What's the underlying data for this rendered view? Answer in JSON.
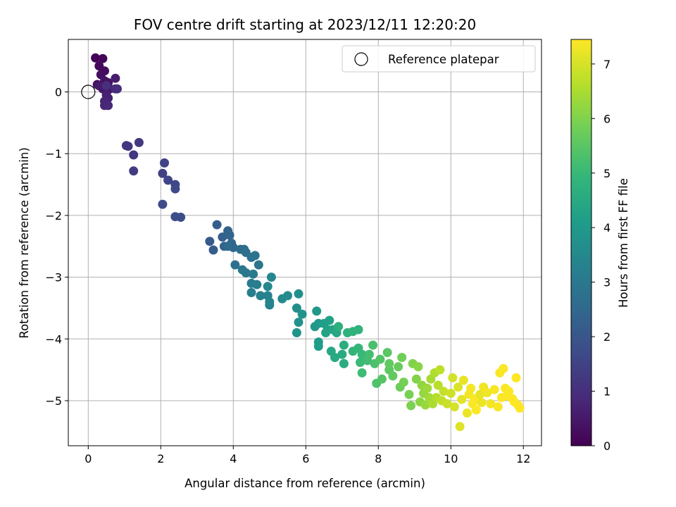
{
  "chart_data": {
    "type": "scatter",
    "title": "FOV centre drift starting at 2023/12/11 12:20:20",
    "xlabel": "Angular distance from reference (arcmin)",
    "ylabel": "Rotation from reference (arcmin)",
    "xlim": [
      -0.55,
      12.5
    ],
    "ylim": [
      -5.73,
      0.85
    ],
    "xticks": [
      0,
      2,
      4,
      6,
      8,
      10,
      12
    ],
    "yticks": [
      0,
      -1,
      -2,
      -3,
      -4,
      -5
    ],
    "grid": true,
    "legend": {
      "placement": "top-right",
      "entries": [
        "Reference platepar"
      ]
    },
    "reference_point": {
      "x": 0,
      "y": 0,
      "label": "Reference platepar"
    },
    "colorbar": {
      "label": "Hours from first FF file",
      "range": [
        0,
        7.45
      ],
      "ticks": [
        0,
        1,
        2,
        3,
        4,
        5,
        6,
        7
      ],
      "colormap": "viridis"
    },
    "points": [
      [
        0.2,
        0.55,
        0.05
      ],
      [
        0.4,
        0.54,
        0.1
      ],
      [
        0.3,
        0.42,
        0.15
      ],
      [
        0.45,
        0.34,
        0.2
      ],
      [
        0.35,
        0.28,
        0.25
      ],
      [
        0.25,
        0.12,
        0.3
      ],
      [
        0.45,
        0.18,
        0.35
      ],
      [
        0.55,
        0.15,
        0.4
      ],
      [
        0.4,
        0.05,
        0.45
      ],
      [
        0.6,
        0.05,
        0.5
      ],
      [
        0.3,
        0.1,
        0.55
      ],
      [
        0.75,
        0.22,
        0.6
      ],
      [
        0.5,
        -0.05,
        0.65
      ],
      [
        0.55,
        -0.1,
        0.7
      ],
      [
        0.45,
        -0.15,
        0.75
      ],
      [
        0.45,
        -0.22,
        0.8
      ],
      [
        0.55,
        -0.22,
        0.85
      ],
      [
        0.75,
        0.05,
        0.9
      ],
      [
        0.8,
        0.05,
        0.95
      ],
      [
        0.5,
        0.1,
        1.0
      ],
      [
        1.05,
        -0.87,
        1.1
      ],
      [
        1.1,
        -0.88,
        1.15
      ],
      [
        1.25,
        -1.02,
        1.2
      ],
      [
        1.4,
        -0.82,
        1.25
      ],
      [
        1.25,
        -1.28,
        1.3
      ],
      [
        2.05,
        -1.32,
        1.45
      ],
      [
        2.1,
        -1.15,
        1.5
      ],
      [
        2.2,
        -1.43,
        1.55
      ],
      [
        2.4,
        -1.5,
        1.6
      ],
      [
        2.4,
        -1.57,
        1.65
      ],
      [
        2.05,
        -1.82,
        1.7
      ],
      [
        2.4,
        -2.02,
        1.75
      ],
      [
        2.55,
        -2.03,
        1.8
      ],
      [
        3.35,
        -2.42,
        2.1
      ],
      [
        3.45,
        -2.56,
        2.15
      ],
      [
        3.55,
        -2.15,
        2.2
      ],
      [
        3.7,
        -2.35,
        2.25
      ],
      [
        3.75,
        -2.5,
        2.3
      ],
      [
        3.85,
        -2.25,
        2.35
      ],
      [
        3.9,
        -2.32,
        2.4
      ],
      [
        3.95,
        -2.45,
        2.45
      ],
      [
        4.0,
        -2.52,
        2.5
      ],
      [
        3.85,
        -2.5,
        2.55
      ],
      [
        4.2,
        -2.55,
        2.6
      ],
      [
        4.3,
        -2.55,
        2.65
      ],
      [
        4.35,
        -2.6,
        2.7
      ],
      [
        4.05,
        -2.8,
        2.75
      ],
      [
        4.5,
        -2.68,
        2.8
      ],
      [
        4.6,
        -2.65,
        2.85
      ],
      [
        4.7,
        -2.8,
        2.9
      ],
      [
        4.25,
        -2.88,
        2.95
      ],
      [
        4.35,
        -2.93,
        3.0
      ],
      [
        4.55,
        -2.95,
        3.05
      ],
      [
        4.5,
        -3.1,
        3.1
      ],
      [
        4.65,
        -3.12,
        3.15
      ],
      [
        4.5,
        -3.25,
        3.2
      ],
      [
        4.75,
        -3.3,
        3.25
      ],
      [
        4.95,
        -3.3,
        3.3
      ],
      [
        5.0,
        -3.45,
        3.35
      ],
      [
        5.0,
        -3.4,
        3.4
      ],
      [
        5.05,
        -3.0,
        3.45
      ],
      [
        4.95,
        -3.15,
        3.5
      ],
      [
        5.35,
        -3.35,
        3.55
      ],
      [
        5.5,
        -3.3,
        3.6
      ],
      [
        5.75,
        -3.5,
        3.65
      ],
      [
        5.8,
        -3.27,
        3.7
      ],
      [
        5.8,
        -3.73,
        3.75
      ],
      [
        5.9,
        -3.6,
        3.8
      ],
      [
        5.75,
        -3.9,
        3.85
      ],
      [
        6.25,
        -3.8,
        3.9
      ],
      [
        6.3,
        -3.55,
        3.95
      ],
      [
        6.35,
        -3.75,
        4.0
      ],
      [
        6.35,
        -4.05,
        4.05
      ],
      [
        6.35,
        -4.12,
        4.1
      ],
      [
        6.5,
        -3.75,
        4.15
      ],
      [
        6.6,
        -3.85,
        4.2
      ],
      [
        6.65,
        -3.7,
        4.25
      ],
      [
        6.55,
        -3.9,
        4.3
      ],
      [
        6.75,
        -3.85,
        4.35
      ],
      [
        6.85,
        -3.9,
        4.4
      ],
      [
        6.7,
        -4.2,
        4.45
      ],
      [
        6.8,
        -4.3,
        4.5
      ],
      [
        7.0,
        -4.25,
        4.55
      ],
      [
        7.05,
        -4.4,
        4.6
      ],
      [
        7.05,
        -4.1,
        4.65
      ],
      [
        6.9,
        -3.8,
        4.7
      ],
      [
        7.15,
        -3.9,
        4.75
      ],
      [
        7.3,
        -3.88,
        4.8
      ],
      [
        7.45,
        -3.85,
        4.85
      ],
      [
        7.3,
        -4.2,
        4.9
      ],
      [
        7.45,
        -4.15,
        4.95
      ],
      [
        7.55,
        -4.25,
        5.0
      ],
      [
        7.5,
        -4.38,
        5.05
      ],
      [
        7.55,
        -4.55,
        5.1
      ],
      [
        7.7,
        -4.35,
        5.15
      ],
      [
        7.75,
        -4.25,
        5.2
      ],
      [
        7.85,
        -4.1,
        5.25
      ],
      [
        7.9,
        -4.4,
        5.3
      ],
      [
        7.95,
        -4.72,
        5.35
      ],
      [
        8.05,
        -4.33,
        5.4
      ],
      [
        8.1,
        -4.65,
        5.45
      ],
      [
        8.25,
        -4.22,
        5.5
      ],
      [
        8.3,
        -4.5,
        5.55
      ],
      [
        8.3,
        -4.4,
        5.6
      ],
      [
        8.4,
        -4.6,
        5.65
      ],
      [
        8.55,
        -4.45,
        5.7
      ],
      [
        8.6,
        -4.78,
        5.75
      ],
      [
        8.65,
        -4.3,
        5.8
      ],
      [
        8.7,
        -4.7,
        5.85
      ],
      [
        8.85,
        -4.9,
        5.9
      ],
      [
        8.9,
        -5.08,
        5.95
      ],
      [
        8.95,
        -4.4,
        6.0
      ],
      [
        9.05,
        -4.65,
        6.05
      ],
      [
        9.1,
        -4.45,
        6.1
      ],
      [
        9.15,
        -5.02,
        6.15
      ],
      [
        9.2,
        -4.75,
        6.2
      ],
      [
        9.25,
        -4.88,
        6.25
      ],
      [
        9.3,
        -5.07,
        6.3
      ],
      [
        9.35,
        -4.8,
        6.35
      ],
      [
        9.4,
        -4.95,
        6.4
      ],
      [
        9.45,
        -4.65,
        6.45
      ],
      [
        9.5,
        -5.05,
        6.5
      ],
      [
        9.55,
        -4.55,
        6.55
      ],
      [
        9.6,
        -4.95,
        6.6
      ],
      [
        9.65,
        -4.75,
        6.65
      ],
      [
        9.7,
        -4.5,
        6.7
      ],
      [
        9.75,
        -5.0,
        6.75
      ],
      [
        9.8,
        -4.85,
        6.8
      ],
      [
        9.9,
        -5.05,
        6.85
      ],
      [
        10.0,
        -4.88,
        6.9
      ],
      [
        10.05,
        -4.63,
        6.95
      ],
      [
        10.1,
        -5.1,
        7.0
      ],
      [
        10.2,
        -4.78,
        7.05
      ],
      [
        10.25,
        -5.42,
        7.1
      ],
      [
        10.3,
        -4.98,
        7.15
      ],
      [
        10.35,
        -4.67,
        7.2
      ],
      [
        10.45,
        -5.2,
        7.25
      ],
      [
        10.5,
        -4.9,
        7.3
      ],
      [
        10.55,
        -4.8,
        7.35
      ],
      [
        10.6,
        -5.05,
        7.4
      ],
      [
        10.65,
        -4.97,
        7.42
      ],
      [
        10.7,
        -5.15,
        7.44
      ],
      [
        10.8,
        -4.9,
        7.2
      ],
      [
        10.85,
        -5.03,
        7.25
      ],
      [
        10.9,
        -4.78,
        7.3
      ],
      [
        11.0,
        -4.87,
        7.3
      ],
      [
        11.1,
        -5.05,
        7.35
      ],
      [
        11.2,
        -4.82,
        7.38
      ],
      [
        11.3,
        -5.1,
        7.4
      ],
      [
        11.35,
        -4.55,
        7.4
      ],
      [
        11.45,
        -4.48,
        7.42
      ],
      [
        11.4,
        -4.95,
        7.42
      ],
      [
        11.5,
        -4.8,
        7.43
      ],
      [
        11.55,
        -4.92,
        7.44
      ],
      [
        11.6,
        -4.85,
        7.44
      ],
      [
        11.7,
        -4.97,
        7.45
      ],
      [
        11.8,
        -4.63,
        7.45
      ],
      [
        11.75,
        -5.02,
        7.45
      ],
      [
        11.85,
        -5.07,
        7.45
      ],
      [
        11.9,
        -5.12,
        7.45
      ]
    ]
  }
}
